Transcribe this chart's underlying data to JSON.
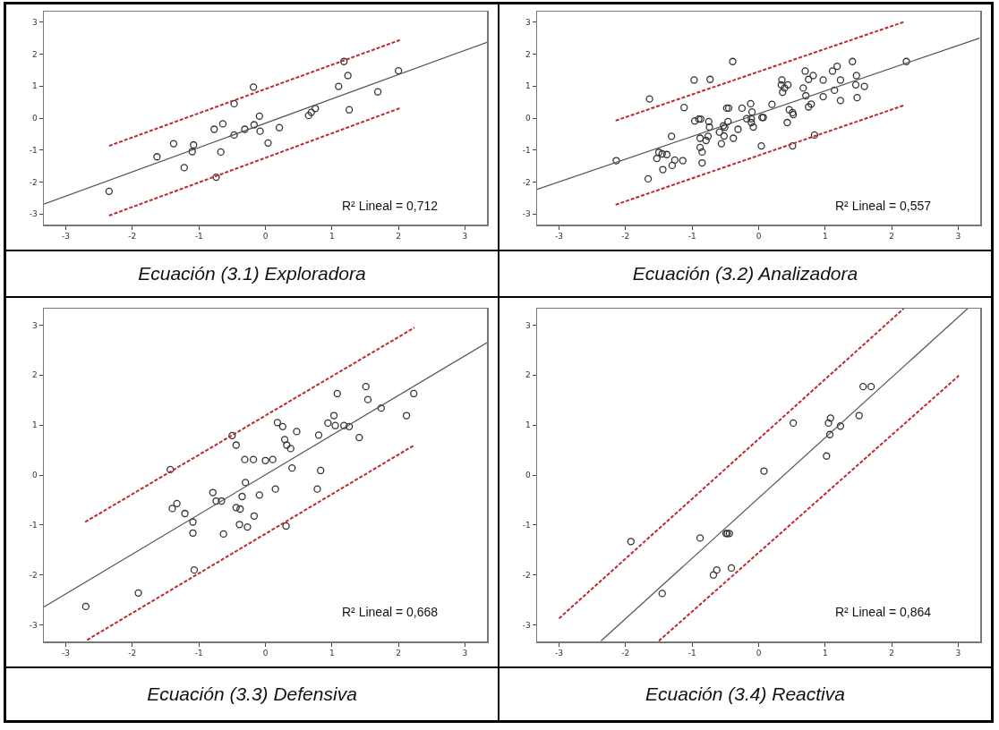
{
  "chart_data": [
    {
      "type": "scatter",
      "title": "Ecuación (3.1)  Exploradora",
      "xlim": [
        -3.33,
        3.33
      ],
      "ylim": [
        -3.33,
        3.33
      ],
      "xticks": [
        -3,
        -2,
        -1,
        0,
        1,
        2,
        3
      ],
      "yticks": [
        -3,
        -2,
        -1,
        0,
        1,
        2,
        3
      ],
      "grid": false,
      "annotations": [
        "R² Lineal = 0,712"
      ],
      "series": [
        {
          "marker": "circle",
          "color": "#333333",
          "x": [
            -2.35,
            -1.63,
            -1.38,
            -1.22,
            -1.1,
            -1.08,
            -0.77,
            -0.74,
            -0.67,
            -0.64,
            -0.47,
            -0.47,
            -0.31,
            -0.18,
            -0.17,
            -0.09,
            -0.08,
            0.04,
            0.21,
            0.65,
            0.69,
            0.75,
            1.1,
            1.18,
            1.24,
            1.26,
            1.69,
            2.0
          ],
          "values": [
            -2.29,
            -1.21,
            -0.8,
            -1.55,
            -1.05,
            -0.84,
            -0.35,
            -1.85,
            -1.06,
            -0.18,
            0.45,
            -0.53,
            -0.35,
            0.97,
            -0.21,
            0.06,
            -0.41,
            -0.78,
            -0.3,
            0.08,
            0.18,
            0.3,
            0.99,
            1.77,
            1.33,
            0.26,
            0.82,
            1.48
          ]
        },
        {
          "type": "line",
          "color": "#555555",
          "line_style": "solid",
          "x": [
            -3.33,
            3.33
          ],
          "values": [
            -2.69,
            2.37
          ]
        },
        {
          "type": "line",
          "color": "#c0282d",
          "line_style": "dashed",
          "x": [
            -2.35,
            2.02
          ],
          "values": [
            -0.87,
            2.44
          ]
        },
        {
          "type": "line",
          "color": "#c0282d",
          "line_style": "dashed",
          "x": [
            -2.35,
            2.02
          ],
          "values": [
            -3.05,
            0.31
          ]
        }
      ]
    },
    {
      "type": "scatter",
      "title": "Ecuación (3.2)  Analizadora",
      "xlim": [
        -3.33,
        3.33
      ],
      "ylim": [
        -3.33,
        3.33
      ],
      "xticks": [
        -3,
        -2,
        -1,
        0,
        1,
        2,
        3
      ],
      "yticks": [
        -3,
        -2,
        -1,
        0,
        1,
        2,
        3
      ],
      "grid": false,
      "annotations": [
        "R² Lineal = 0,557"
      ],
      "series": [
        {
          "marker": "circle",
          "color": "#333333",
          "x": [
            -2.14,
            -1.64,
            -1.66,
            -1.53,
            -1.5,
            -1.45,
            -1.44,
            -1.38,
            -1.31,
            -1.3,
            -1.26,
            -1.14,
            -1.12,
            -0.97,
            -0.96,
            -0.9,
            -0.87,
            -0.88,
            -0.88,
            -0.85,
            -0.85,
            -0.79,
            -0.76,
            -0.74,
            -0.75,
            -0.73,
            -0.59,
            -0.56,
            -0.53,
            -0.52,
            -0.51,
            -0.48,
            -0.45,
            -0.46,
            -0.39,
            -0.38,
            -0.31,
            -0.25,
            -0.18,
            -0.12,
            -0.11,
            -0.1,
            -0.11,
            -0.08,
            0.04,
            0.05,
            0.07,
            0.2,
            0.35,
            0.34,
            0.36,
            0.39,
            0.44,
            0.43,
            0.46,
            0.51,
            0.52,
            0.51,
            0.67,
            0.7,
            0.71,
            0.75,
            0.75,
            0.79,
            0.82,
            0.84,
            0.97,
            0.97,
            1.11,
            1.14,
            1.18,
            1.23,
            1.23,
            1.41,
            1.46,
            1.47,
            1.48,
            1.59,
            2.22
          ],
          "values": [
            -1.33,
            0.6,
            -1.9,
            -1.26,
            -1.07,
            -1.12,
            -1.61,
            -1.14,
            -0.57,
            -1.48,
            -1.31,
            -1.33,
            0.33,
            1.19,
            -0.09,
            -0.03,
            -0.03,
            -0.63,
            -0.92,
            -1.06,
            -1.4,
            -0.7,
            -0.57,
            -0.28,
            -0.11,
            1.21,
            -0.44,
            -0.8,
            -0.24,
            -0.56,
            -0.29,
            0.31,
            0.31,
            -0.11,
            1.77,
            -0.63,
            -0.35,
            0.31,
            -0.02,
            0.45,
            -0.02,
            0.19,
            -0.14,
            -0.28,
            -0.87,
            0.02,
            0.02,
            0.43,
            1.19,
            1.04,
            0.81,
            0.94,
            1.04,
            -0.14,
            0.26,
            0.17,
            0.11,
            -0.87,
            0.94,
            1.47,
            0.7,
            1.21,
            0.35,
            0.44,
            1.33,
            -0.53,
            1.19,
            0.67,
            1.47,
            0.87,
            1.62,
            1.19,
            0.55,
            1.77,
            1.04,
            1.33,
            0.64,
            0.99,
            1.77
          ]
        },
        {
          "type": "line",
          "color": "#555555",
          "line_style": "solid",
          "x": [
            -3.33,
            3.32
          ],
          "values": [
            -2.23,
            2.5
          ]
        },
        {
          "type": "line",
          "color": "#c0282d",
          "line_style": "dashed",
          "x": [
            -2.15,
            2.2
          ],
          "values": [
            -0.08,
            3.02
          ]
        },
        {
          "type": "line",
          "color": "#c0282d",
          "line_style": "dashed",
          "x": [
            -2.15,
            2.2
          ],
          "values": [
            -2.71,
            0.41
          ]
        }
      ]
    },
    {
      "type": "scatter",
      "title": "Ecuación (3.3)  Defensiva",
      "xlim": [
        -3.33,
        3.33
      ],
      "ylim": [
        -3.33,
        3.33
      ],
      "xticks": [
        -3,
        -2,
        -1,
        0,
        1,
        2,
        3
      ],
      "yticks": [
        -3,
        -2,
        -1,
        0,
        1,
        2,
        3
      ],
      "grid": false,
      "annotations": [
        "R² Lineal = 0,668"
      ],
      "series": [
        {
          "marker": "circle",
          "color": "#333333",
          "x": [
            -2.7,
            -1.91,
            -1.43,
            -1.4,
            -1.33,
            -1.21,
            -1.09,
            -1.09,
            -1.07,
            -0.79,
            -0.74,
            -0.66,
            -0.63,
            -0.5,
            -0.44,
            -0.44,
            -0.38,
            -0.39,
            -0.35,
            -0.31,
            -0.3,
            -0.27,
            -0.18,
            -0.17,
            -0.09,
            0.0,
            0.11,
            0.15,
            0.18,
            0.26,
            0.29,
            0.32,
            0.31,
            0.38,
            0.4,
            0.47,
            0.78,
            0.8,
            0.83,
            0.94,
            1.03,
            1.05,
            1.08,
            1.18,
            1.26,
            1.41,
            1.51,
            1.54,
            1.74,
            2.12,
            2.23
          ],
          "values": [
            -2.63,
            -2.36,
            0.11,
            -0.67,
            -0.57,
            -0.77,
            -0.94,
            -1.16,
            -1.9,
            -0.35,
            -0.52,
            -0.52,
            -1.18,
            0.79,
            0.6,
            -0.65,
            -0.68,
            -0.99,
            -0.43,
            0.31,
            -0.15,
            -1.04,
            0.31,
            -0.82,
            -0.4,
            0.29,
            0.31,
            -0.28,
            1.05,
            0.97,
            0.71,
            0.6,
            -1.02,
            0.53,
            0.14,
            0.87,
            -0.28,
            0.8,
            0.09,
            1.04,
            1.19,
            0.99,
            1.63,
            0.99,
            0.97,
            0.75,
            1.77,
            1.51,
            1.34,
            1.19,
            1.63
          ]
        },
        {
          "type": "line",
          "color": "#555555",
          "line_style": "solid",
          "x": [
            -3.33,
            3.33
          ],
          "values": [
            -2.64,
            2.65
          ]
        },
        {
          "type": "line",
          "color": "#c0282d",
          "line_style": "dashed",
          "x": [
            -2.71,
            2.24
          ],
          "values": [
            -0.94,
            2.95
          ]
        },
        {
          "type": "line",
          "color": "#c0282d",
          "line_style": "dashed",
          "x": [
            -2.68,
            2.24
          ],
          "values": [
            -3.3,
            0.6
          ]
        }
      ]
    },
    {
      "type": "scatter",
      "title": "Ecuación (3.4)  Reactiva",
      "xlim": [
        -3.33,
        3.33
      ],
      "ylim": [
        -3.33,
        3.33
      ],
      "xticks": [
        -3,
        -2,
        -1,
        0,
        1,
        2,
        3
      ],
      "yticks": [
        -3,
        -2,
        -1,
        0,
        1,
        2,
        3
      ],
      "grid": false,
      "annotations": [
        "R² Lineal = 0,864"
      ],
      "series": [
        {
          "marker": "circle",
          "color": "#333333",
          "x": [
            -1.92,
            -1.45,
            -0.88,
            -0.68,
            -0.63,
            -0.49,
            -0.47,
            -0.44,
            -0.41,
            0.08,
            0.52,
            1.02,
            1.05,
            1.07,
            1.08,
            1.23,
            1.51,
            1.57,
            1.69
          ],
          "values": [
            -1.33,
            -2.37,
            -1.26,
            -2.0,
            -1.9,
            -1.17,
            -1.17,
            -1.17,
            -1.86,
            0.08,
            1.04,
            0.38,
            1.04,
            0.81,
            1.14,
            0.98,
            1.19,
            1.77,
            1.77
          ]
        },
        {
          "type": "line",
          "color": "#555555",
          "line_style": "solid",
          "x": [
            -2.37,
            3.14
          ],
          "values": [
            -3.32,
            3.33
          ]
        },
        {
          "type": "line",
          "color": "#c0282d",
          "line_style": "dashed",
          "x": [
            -3.0,
            2.18
          ],
          "values": [
            -2.87,
            3.33
          ]
        },
        {
          "type": "line",
          "color": "#c0282d",
          "line_style": "dashed",
          "x": [
            -1.5,
            3.01
          ],
          "values": [
            -3.32,
            1.99
          ]
        }
      ]
    }
  ]
}
